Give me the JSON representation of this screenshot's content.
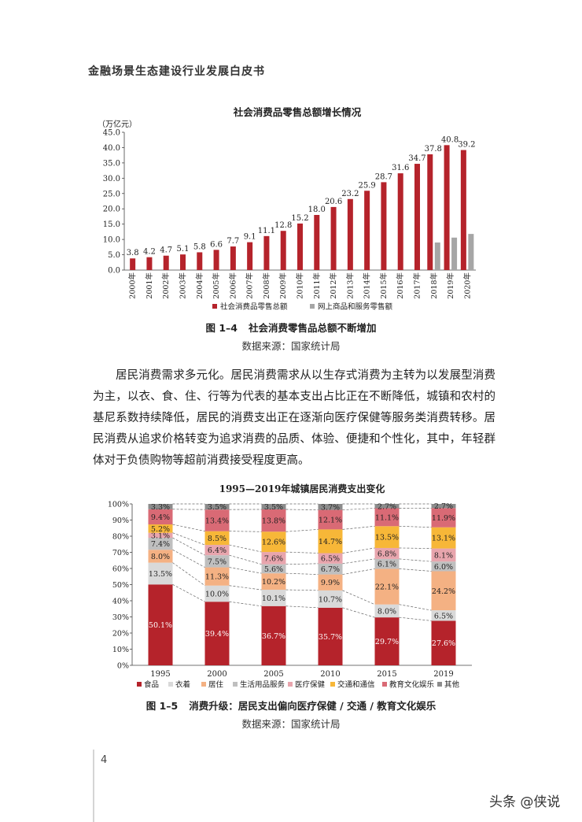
{
  "header": {
    "title": "金融场景生态建设行业发展白皮书"
  },
  "figure1": {
    "caption_number": "图 1–4",
    "caption_text": "社会消费零售品总额不断增加",
    "source": "数据来源：国家统计局"
  },
  "paragraph": "居民消费需求多元化。居民消费需求从以生存式消费为主转为以发展型消费为主，以衣、食、住、行等为代表的基本支出占比正在不断降低，城镇和农村的基尼系数持续降低，居民的消费支出正在逐渐向医疗保健等服务类消费转移。居民消费从追求价格转变为追求消费的品质、体验、便捷和个性化，其中，年轻群体对于负债购物等超前消费接受程度更高。",
  "figure2": {
    "caption_number": "图 1–5",
    "caption_text": "消费升级：居民支出偏向医疗保健 / 交通 / 教育文化娱乐",
    "source": "数据来源：国家统计局"
  },
  "page_number": "4",
  "watermark": "头条 @侠说",
  "chart_data": [
    {
      "type": "bar",
      "title": "社会消费品零售总额增长情况",
      "ylabel": "（万亿元）",
      "ylim": [
        0,
        45
      ],
      "yticks": [
        "0.0",
        "5.0",
        "10.0",
        "15.0",
        "20.0",
        "25.0",
        "30.0",
        "35.0",
        "40.0",
        "45.0"
      ],
      "categories": [
        "2000年",
        "2001年",
        "2002年",
        "2003年",
        "2004年",
        "2005年",
        "2006年",
        "2007年",
        "2008年",
        "2009年",
        "2010年",
        "2011年",
        "2012年",
        "2013年",
        "2014年",
        "2015年",
        "2016年",
        "2017年",
        "2018年",
        "2019年",
        "2020年"
      ],
      "series": [
        {
          "name": "社会消费品零售总额",
          "color": "#b5232b",
          "values": [
            3.8,
            4.2,
            4.7,
            5.1,
            5.8,
            6.6,
            7.7,
            9.1,
            11.1,
            12.8,
            15.2,
            18.0,
            20.6,
            23.2,
            25.9,
            28.7,
            31.6,
            34.7,
            37.8,
            40.8,
            39.2
          ],
          "labels": [
            "3.8",
            "4.2",
            "4.7",
            "5.1",
            "5.8",
            "6.6",
            "7.7",
            "9.1",
            "11.1",
            "12.8",
            "15.2",
            "18.0",
            "20.6",
            "23.2",
            "25.9",
            "28.7",
            "31.6",
            "34.7",
            "37.8",
            "40.8",
            "39.2"
          ]
        },
        {
          "name": "网上商品和服务零售额",
          "color": "#a6a6a6",
          "values": [
            null,
            null,
            null,
            null,
            null,
            null,
            null,
            null,
            null,
            null,
            null,
            null,
            null,
            null,
            null,
            null,
            null,
            null,
            9.0,
            10.6,
            11.8
          ]
        }
      ],
      "legend": "bottom"
    },
    {
      "type": "bar",
      "stacked": true,
      "title": "1995—2019年城镇居民消费支出变化",
      "ylim": [
        0,
        100
      ],
      "yticks": [
        "0%",
        "10%",
        "20%",
        "30%",
        "40%",
        "50%",
        "60%",
        "70%",
        "80%",
        "90%",
        "100%"
      ],
      "categories": [
        "1995",
        "2000",
        "2005",
        "2010",
        "2015",
        "2019"
      ],
      "series": [
        {
          "name": "食品",
          "color": "#b5232b",
          "values": [
            50.1,
            39.4,
            36.7,
            35.7,
            29.7,
            27.6
          ],
          "labels": [
            "50.1%",
            "39.4%",
            "36.7%",
            "35.7%",
            "29.7%",
            "27.6%"
          ]
        },
        {
          "name": "衣着",
          "color": "#d9d9d9",
          "values": [
            13.5,
            10.0,
            10.1,
            10.7,
            8.0,
            6.5
          ],
          "labels": [
            "13.5%",
            "10.0%",
            "10.1%",
            "10.7%",
            "8.0%",
            "6.5%"
          ]
        },
        {
          "name": "居住",
          "color": "#f4b183",
          "values": [
            8.0,
            11.3,
            10.2,
            9.9,
            22.1,
            24.2
          ],
          "labels": [
            "8.0%",
            "11.3%",
            "10.2%",
            "9.9%",
            "22.1%",
            "24.2%"
          ]
        },
        {
          "name": "生活用品服务",
          "color": "#bfbfbf",
          "values": [
            7.4,
            7.5,
            5.6,
            6.7,
            6.1,
            6.0
          ],
          "labels": [
            "7.4%",
            "7.5%",
            "5.6%",
            "6.7%",
            "6.1%",
            "6.0%"
          ]
        },
        {
          "name": "医疗保健",
          "color": "#e8a5ad",
          "values": [
            3.1,
            6.4,
            7.6,
            6.5,
            6.8,
            8.1
          ],
          "labels": [
            "3.1%",
            "6.4%",
            "7.6%",
            "6.5%",
            "6.8%",
            "8.1%"
          ]
        },
        {
          "name": "交通和通信",
          "color": "#f7b738",
          "values": [
            5.2,
            8.5,
            12.6,
            14.7,
            13.5,
            13.1
          ],
          "labels": [
            "5.2%",
            "8.5%",
            "12.6%",
            "14.7%",
            "13.5%",
            "13.1%"
          ]
        },
        {
          "name": "教育文化娱乐",
          "color": "#d96a75",
          "values": [
            9.4,
            13.4,
            13.8,
            12.1,
            11.1,
            11.9
          ],
          "labels": [
            "9.4%",
            "13.4%",
            "13.8%",
            "12.1%",
            "11.1%",
            "11.9%"
          ]
        },
        {
          "name": "其他",
          "color": "#8c8c8c",
          "values": [
            3.3,
            3.5,
            3.5,
            3.7,
            2.7,
            2.7
          ],
          "labels": [
            "3.3%",
            "3.5%",
            "3.5%",
            "3.7%",
            "2.7%",
            "2.7%"
          ]
        }
      ],
      "connector_lines": "dashed",
      "legend": "bottom"
    }
  ]
}
